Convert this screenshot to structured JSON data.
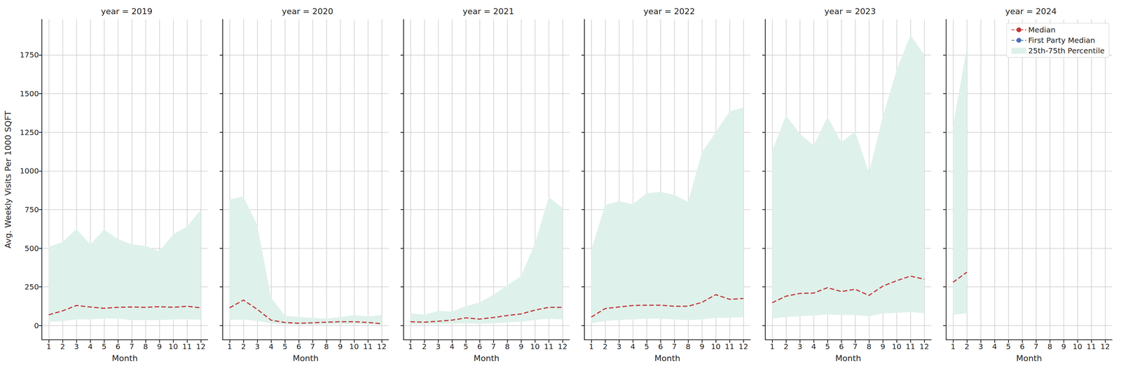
{
  "chart_data": [
    {
      "type": "line",
      "title": "year = 2019",
      "x_label": "Month",
      "y_label": "Avg. Weekly Visits Per 1000 SQFT",
      "x": [
        1,
        2,
        3,
        4,
        5,
        6,
        7,
        8,
        9,
        10,
        11,
        12
      ],
      "xlim": [
        0.5,
        12.5
      ],
      "xticks": [
        1,
        2,
        3,
        4,
        5,
        6,
        7,
        8,
        9,
        10,
        11,
        12
      ],
      "ylim": [
        -92,
        1980
      ],
      "yticks": [
        0,
        250,
        500,
        750,
        1000,
        1250,
        1500,
        1750
      ],
      "grid": true,
      "series": [
        {
          "name": "Median",
          "color": "#c0393b",
          "line_style": "dashed",
          "values": [
            70,
            95,
            130,
            120,
            112,
            118,
            120,
            118,
            122,
            118,
            125,
            115
          ]
        },
        {
          "name": "First Party Median",
          "color": "#4c72b0",
          "line_style": "dashed",
          "values": [
            null,
            null,
            null,
            null,
            null,
            null,
            null,
            null,
            null,
            null,
            null,
            null
          ]
        },
        {
          "name": "25th-75th Percentile",
          "type": "band",
          "color": "#dff1eb",
          "lower": [
            25,
            28,
            40,
            40,
            45,
            45,
            35,
            35,
            35,
            40,
            40,
            38
          ],
          "upper": [
            510,
            540,
            625,
            525,
            620,
            560,
            525,
            515,
            480,
            590,
            640,
            750
          ]
        }
      ]
    },
    {
      "type": "line",
      "title": "year = 2020",
      "x_label": "Month",
      "tick_labels": "x",
      "x": [
        1,
        2,
        3,
        4,
        5,
        6,
        7,
        8,
        9,
        10,
        11,
        12
      ],
      "xlim": [
        0.5,
        12.5
      ],
      "xticks": [
        1,
        2,
        3,
        4,
        5,
        6,
        7,
        8,
        9,
        10,
        11,
        12
      ],
      "ylim": [
        -92,
        1980
      ],
      "yticks": [
        0,
        250,
        500,
        750,
        1000,
        1250,
        1500,
        1750
      ],
      "grid": true,
      "series": [
        {
          "name": "Median",
          "color": "#c0393b",
          "line_style": "dashed",
          "values": [
            115,
            165,
            105,
            35,
            20,
            15,
            18,
            22,
            25,
            25,
            20,
            12
          ]
        },
        {
          "name": "First Party Median",
          "color": "#4c72b0",
          "line_style": "dashed",
          "values": [
            null,
            null,
            null,
            null,
            null,
            null,
            null,
            null,
            null,
            null,
            null,
            null
          ]
        },
        {
          "name": "25th-75th Percentile",
          "type": "band",
          "color": "#dff1eb",
          "lower": [
            35,
            40,
            30,
            15,
            8,
            6,
            6,
            8,
            10,
            10,
            8,
            5
          ],
          "upper": [
            815,
            835,
            650,
            180,
            65,
            55,
            50,
            45,
            55,
            68,
            60,
            68
          ]
        }
      ]
    },
    {
      "type": "line",
      "title": "year = 2021",
      "x_label": "Month",
      "tick_labels": "x",
      "x": [
        1,
        2,
        3,
        4,
        5,
        6,
        7,
        8,
        9,
        10,
        11,
        12
      ],
      "xlim": [
        0.5,
        12.5
      ],
      "xticks": [
        1,
        2,
        3,
        4,
        5,
        6,
        7,
        8,
        9,
        10,
        11,
        12
      ],
      "ylim": [
        -92,
        1980
      ],
      "yticks": [
        0,
        250,
        500,
        750,
        1000,
        1250,
        1500,
        1750
      ],
      "grid": true,
      "series": [
        {
          "name": "Median",
          "color": "#c0393b",
          "line_style": "dashed",
          "values": [
            25,
            22,
            28,
            35,
            50,
            42,
            52,
            65,
            75,
            100,
            118,
            118
          ]
        },
        {
          "name": "First Party Median",
          "color": "#4c72b0",
          "line_style": "dashed",
          "values": [
            null,
            null,
            null,
            null,
            null,
            null,
            null,
            null,
            null,
            null,
            null,
            null
          ]
        },
        {
          "name": "25th-75th Percentile",
          "type": "band",
          "color": "#dff1eb",
          "lower": [
            8,
            8,
            10,
            12,
            15,
            12,
            15,
            20,
            25,
            35,
            45,
            40
          ],
          "upper": [
            80,
            70,
            95,
            90,
            125,
            150,
            200,
            260,
            320,
            530,
            830,
            760
          ]
        }
      ]
    },
    {
      "type": "line",
      "title": "year = 2022",
      "x_label": "Month",
      "tick_labels": "x",
      "x": [
        1,
        2,
        3,
        4,
        5,
        6,
        7,
        8,
        9,
        10,
        11,
        12
      ],
      "xlim": [
        0.5,
        12.5
      ],
      "xticks": [
        1,
        2,
        3,
        4,
        5,
        6,
        7,
        8,
        9,
        10,
        11,
        12
      ],
      "ylim": [
        -92,
        1980
      ],
      "yticks": [
        0,
        250,
        500,
        750,
        1000,
        1250,
        1500,
        1750
      ],
      "grid": true,
      "series": [
        {
          "name": "Median",
          "color": "#c0393b",
          "line_style": "dashed",
          "values": [
            55,
            110,
            120,
            130,
            132,
            132,
            125,
            125,
            150,
            200,
            170,
            175
          ]
        },
        {
          "name": "First Party Median",
          "color": "#4c72b0",
          "line_style": "dashed",
          "values": [
            null,
            null,
            null,
            null,
            null,
            null,
            null,
            null,
            null,
            null,
            null,
            null
          ]
        },
        {
          "name": "25th-75th Percentile",
          "type": "band",
          "color": "#dff1eb",
          "lower": [
            15,
            30,
            35,
            40,
            45,
            45,
            40,
            35,
            40,
            50,
            50,
            55
          ],
          "upper": [
            490,
            780,
            805,
            785,
            855,
            865,
            845,
            800,
            1120,
            1250,
            1385,
            1410
          ]
        }
      ]
    },
    {
      "type": "line",
      "title": "year = 2023",
      "x_label": "Month",
      "tick_labels": "x",
      "x": [
        1,
        2,
        3,
        4,
        5,
        6,
        7,
        8,
        9,
        10,
        11,
        12
      ],
      "xlim": [
        0.5,
        12.5
      ],
      "xticks": [
        1,
        2,
        3,
        4,
        5,
        6,
        7,
        8,
        9,
        10,
        11,
        12
      ],
      "ylim": [
        -92,
        1980
      ],
      "yticks": [
        0,
        250,
        500,
        750,
        1000,
        1250,
        1500,
        1750
      ],
      "grid": true,
      "series": [
        {
          "name": "Median",
          "color": "#c0393b",
          "line_style": "dashed",
          "values": [
            148,
            190,
            208,
            210,
            245,
            220,
            235,
            195,
            255,
            290,
            320,
            300
          ]
        },
        {
          "name": "First Party Median",
          "color": "#4c72b0",
          "line_style": "dashed",
          "values": [
            null,
            null,
            null,
            null,
            null,
            null,
            null,
            null,
            null,
            null,
            null,
            null
          ]
        },
        {
          "name": "25th-75th Percentile",
          "type": "band",
          "color": "#dff1eb",
          "lower": [
            45,
            55,
            60,
            65,
            72,
            68,
            68,
            60,
            78,
            82,
            88,
            80
          ],
          "upper": [
            1130,
            1360,
            1240,
            1165,
            1350,
            1185,
            1255,
            990,
            1350,
            1650,
            1880,
            1750
          ]
        }
      ]
    },
    {
      "type": "line",
      "title": "year = 2024",
      "x_label": "Month",
      "tick_labels": "x",
      "legend": "upper right",
      "x": [
        1,
        2,
        3,
        4,
        5,
        6,
        7,
        8,
        9,
        10,
        11,
        12
      ],
      "xlim": [
        0.5,
        12.5
      ],
      "xticks": [
        1,
        2,
        3,
        4,
        5,
        6,
        7,
        8,
        9,
        10,
        11,
        12
      ],
      "ylim": [
        -92,
        1980
      ],
      "yticks": [
        0,
        250,
        500,
        750,
        1000,
        1250,
        1500,
        1750
      ],
      "grid": true,
      "series": [
        {
          "name": "Median",
          "color": "#c0393b",
          "line_style": "dashed",
          "values": [
            280,
            345,
            null,
            null,
            null,
            null,
            null,
            null,
            null,
            null,
            null,
            null
          ]
        },
        {
          "name": "First Party Median",
          "color": "#4c72b0",
          "line_style": "dashed",
          "values": [
            null,
            null,
            null,
            null,
            null,
            null,
            null,
            null,
            null,
            null,
            null,
            null
          ]
        },
        {
          "name": "25th-75th Percentile",
          "type": "band",
          "color": "#dff1eb",
          "lower": [
            70,
            80,
            null,
            null,
            null,
            null,
            null,
            null,
            null,
            null,
            null,
            null
          ],
          "upper": [
            1290,
            1800,
            null,
            null,
            null,
            null,
            null,
            null,
            null,
            null,
            null,
            null
          ]
        }
      ]
    }
  ]
}
